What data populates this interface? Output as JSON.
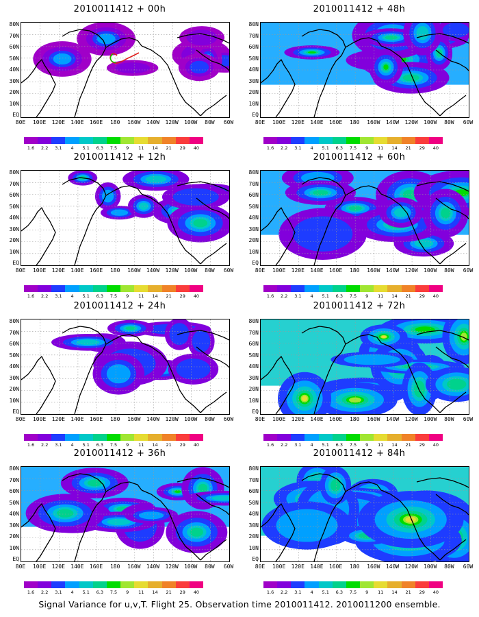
{
  "figure": {
    "caption": "Signal Variance for u,v,T. Flight 25. Observation time 2010011412. 2010011200 ensemble."
  },
  "map_axes": {
    "lat_labels": [
      "80N",
      "70N",
      "60N",
      "50N",
      "40N",
      "30N",
      "20N",
      "10N",
      "EQ"
    ],
    "lon_labels": [
      "80E",
      "100E",
      "120E",
      "140E",
      "160E",
      "180",
      "160W",
      "140W",
      "120W",
      "100W",
      "80W",
      "60W"
    ]
  },
  "colorbar": {
    "levels": [
      "1.6",
      "2.2",
      "3.1",
      "4",
      "5.1",
      "6.3",
      "7.5",
      "9",
      "11",
      "14",
      "21",
      "29",
      "40"
    ],
    "colors": [
      "#a000c8",
      "#8200dc",
      "#1e3cff",
      "#00a0ff",
      "#00c8c8",
      "#00d28c",
      "#00dc00",
      "#a0e632",
      "#e6dc32",
      "#e6af2d",
      "#f08228",
      "#fa3c3c",
      "#f00082"
    ]
  },
  "panels": [
    {
      "title": "2010011412 + 00h",
      "intensity": 0.15
    },
    {
      "title": "2010011412 + 48h",
      "intensity": 0.62
    },
    {
      "title": "2010011412 + 12h",
      "intensity": 0.28
    },
    {
      "title": "2010011412 + 60h",
      "intensity": 0.72
    },
    {
      "title": "2010011412 + 24h",
      "intensity": 0.42
    },
    {
      "title": "2010011412 + 72h",
      "intensity": 0.82
    },
    {
      "title": "2010011412 + 36h",
      "intensity": 0.52
    },
    {
      "title": "2010011412 + 84h",
      "intensity": 0.95
    }
  ]
}
